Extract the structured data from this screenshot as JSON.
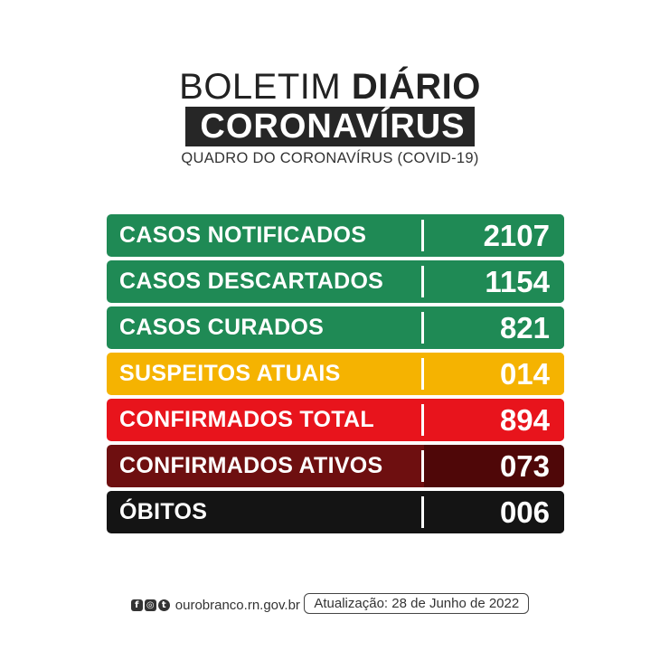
{
  "header": {
    "title_light": "BOLETIM",
    "title_bold": "DIÁRIO",
    "banner": "CORONAVÍRUS",
    "subtitle": "QUADRO DO CORONAVÍRUS (COVID-19)"
  },
  "rows": [
    {
      "label": "CASOS NOTIFICADOS",
      "value": "2107",
      "color": "#1f8a55",
      "value_color": "#1f8a55"
    },
    {
      "label": "CASOS DESCARTADOS",
      "value": "1154",
      "color": "#1f8a55",
      "value_color": "#1f8a55"
    },
    {
      "label": "CASOS CURADOS",
      "value": "821",
      "color": "#1f8a55",
      "value_color": "#1f8a55"
    },
    {
      "label": "SUSPEITOS ATUAIS",
      "value": "014",
      "color": "#f5b301",
      "value_color": "#f5b301"
    },
    {
      "label": "CONFIRMADOS TOTAL",
      "value": "894",
      "color": "#e8141c",
      "value_color": "#e8141c"
    },
    {
      "label": "CONFIRMADOS ATIVOS",
      "value": "073",
      "color": "#6e0f10",
      "value_color": "#4f0708"
    },
    {
      "label": "ÓBITOS",
      "value": "006",
      "color": "#141414",
      "value_color": "#141414"
    }
  ],
  "footer": {
    "social_icons": [
      "facebook-icon",
      "instagram-icon",
      "twitter-icon"
    ],
    "website": "ourobranco.rn.gov.br",
    "update": "Atualização: 28 de Junho de 2022"
  }
}
